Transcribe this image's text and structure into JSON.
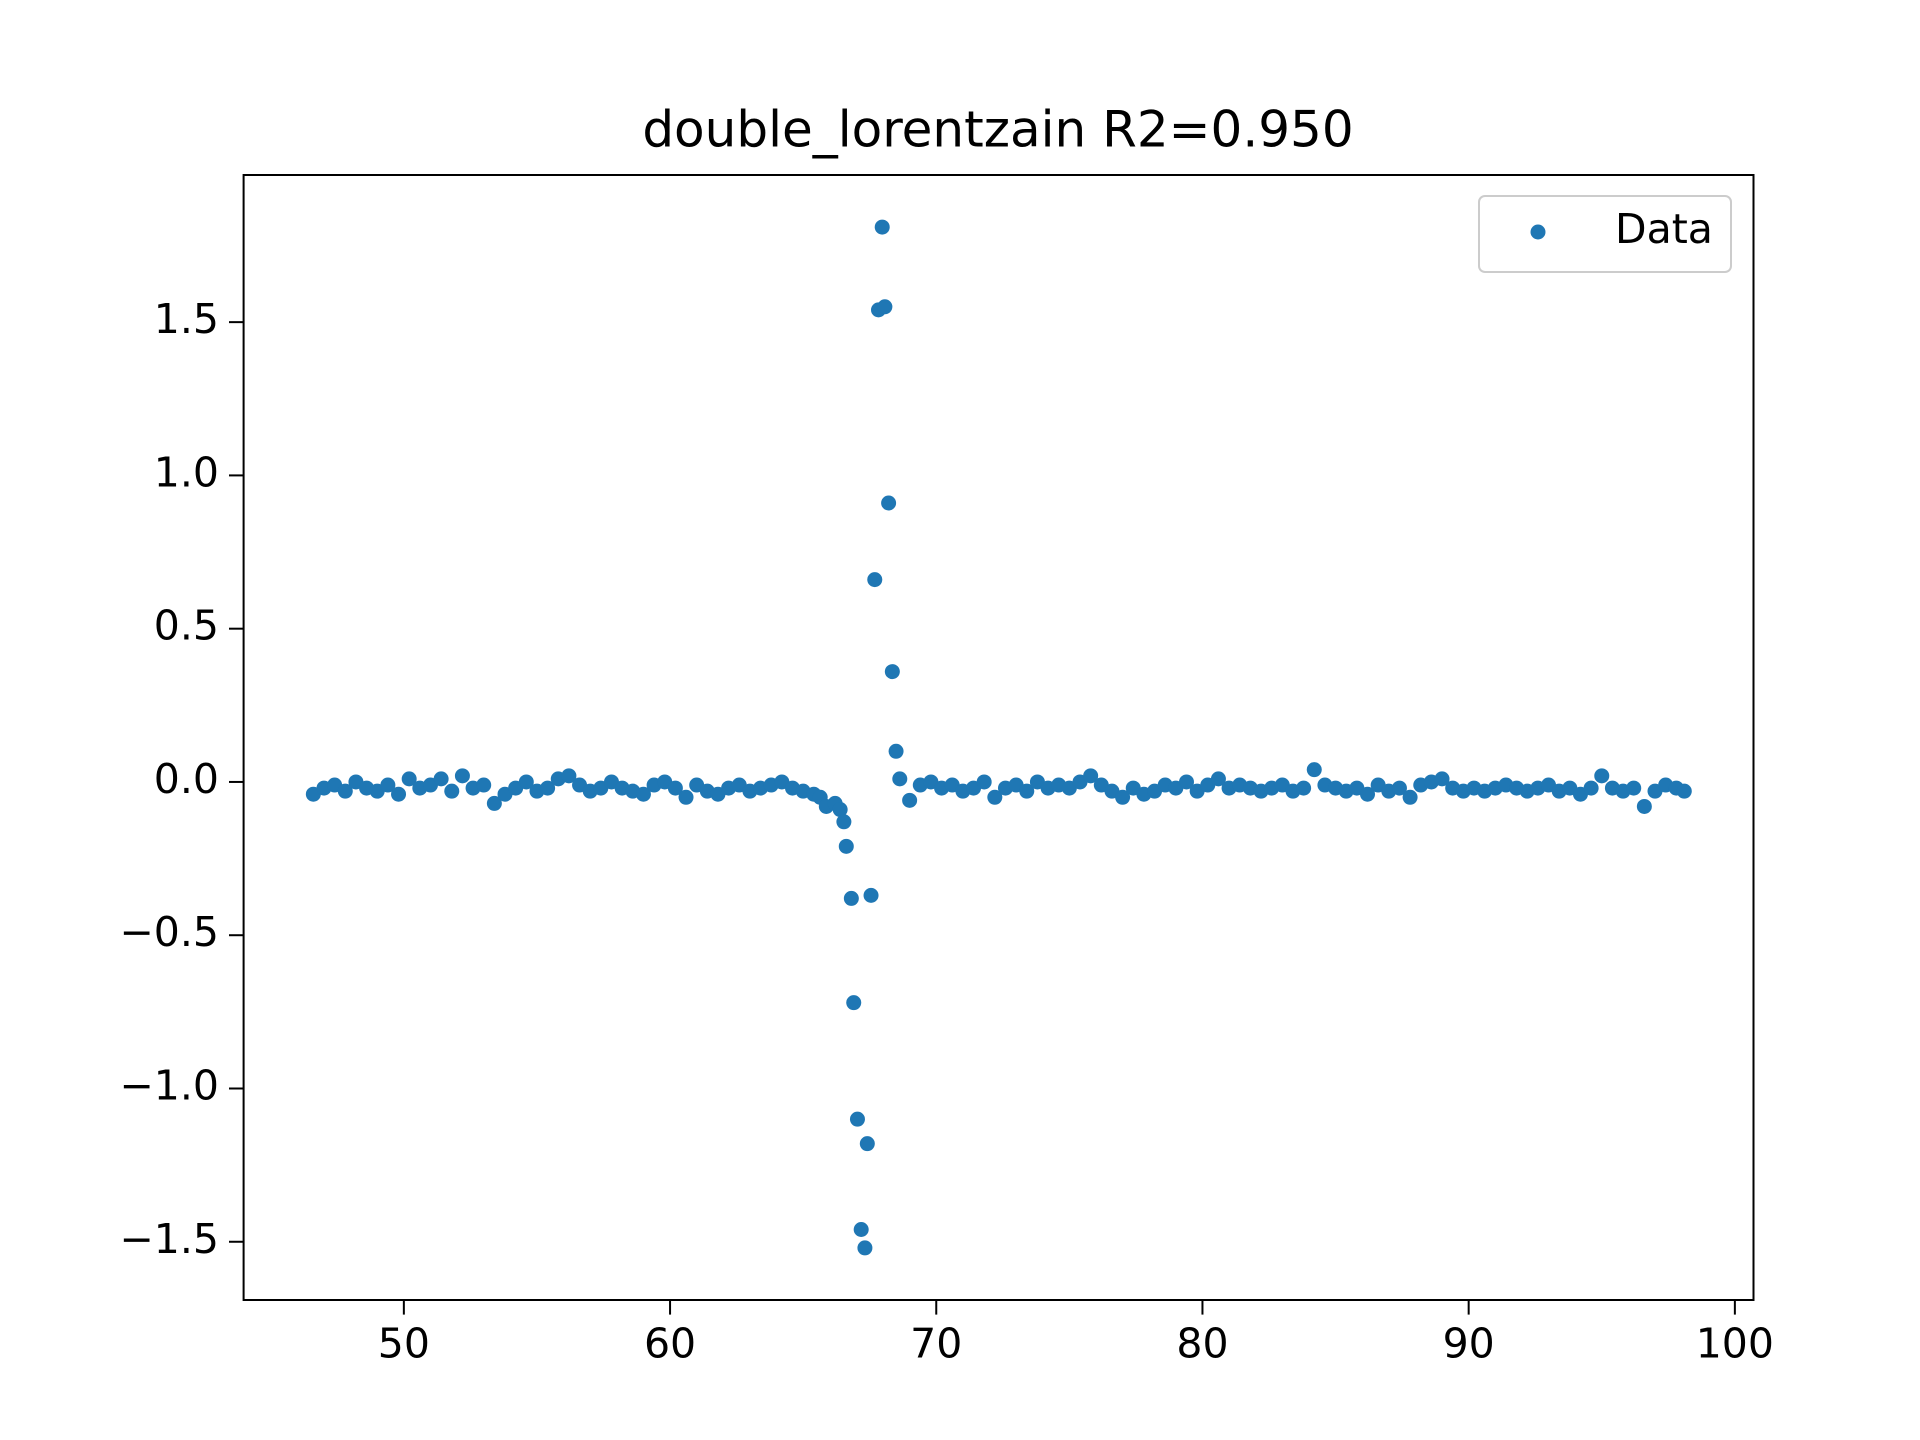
{
  "chart_data": {
    "type": "scatter",
    "title": "double_lorentzain R2=0.950",
    "xlim": [
      43.98,
      100.7
    ],
    "ylim": [
      -1.69,
      1.98
    ],
    "xticks": [
      50,
      60,
      70,
      80,
      90,
      100
    ],
    "yticks": [
      {
        "value": -1.5,
        "label": "−1.5"
      },
      {
        "value": -1.0,
        "label": "−1.0"
      },
      {
        "value": -0.5,
        "label": "−0.5"
      },
      {
        "value": 0,
        "label": "0.0"
      },
      0.5,
      {
        "value": 1.0,
        "label": "1.0"
      },
      1.5
    ],
    "legend": "upper right",
    "series": [
      {
        "name": "Data",
        "color": "#1f77b4",
        "x": [
          46.6,
          47.0,
          47.4,
          47.8,
          48.2,
          48.6,
          49.0,
          49.4,
          49.8,
          50.2,
          50.6,
          51.0,
          51.4,
          51.8,
          52.2,
          52.6,
          53.0,
          53.4,
          53.8,
          54.2,
          54.6,
          55.0,
          55.4,
          55.8,
          56.2,
          56.6,
          57.0,
          57.4,
          57.8,
          58.2,
          58.6,
          59.0,
          59.4,
          59.8,
          60.2,
          60.6,
          61.0,
          61.4,
          61.8,
          62.2,
          62.6,
          63.0,
          63.4,
          63.8,
          64.2,
          64.6,
          65.0,
          65.4,
          65.64,
          65.87,
          66.2,
          66.39,
          66.53,
          66.62,
          66.81,
          66.9,
          67.04,
          67.18,
          67.32,
          67.41,
          67.55,
          67.69,
          67.83,
          67.97,
          68.07,
          68.21,
          68.35,
          68.49,
          68.63,
          69.0,
          69.4,
          69.8,
          70.2,
          70.6,
          71.0,
          71.4,
          71.8,
          72.2,
          72.6,
          73.0,
          73.4,
          73.8,
          74.2,
          74.6,
          75.0,
          75.4,
          75.8,
          76.2,
          76.6,
          77.0,
          77.4,
          77.8,
          78.2,
          78.6,
          79.0,
          79.4,
          79.8,
          80.2,
          80.6,
          81.0,
          81.4,
          81.8,
          82.2,
          82.6,
          83.0,
          83.4,
          83.8,
          84.2,
          84.6,
          85.0,
          85.4,
          85.8,
          86.2,
          86.6,
          87.0,
          87.4,
          87.8,
          88.2,
          88.6,
          89.0,
          89.4,
          89.8,
          90.2,
          90.6,
          91.0,
          91.4,
          91.8,
          92.2,
          92.6,
          93.0,
          93.4,
          93.8,
          94.2,
          94.6,
          95.0,
          95.4,
          95.8,
          96.2,
          96.6,
          97.0,
          97.4,
          97.8,
          98.1
        ],
        "values": [
          -0.04,
          -0.02,
          -0.01,
          -0.03,
          0.0,
          -0.02,
          -0.03,
          -0.01,
          -0.04,
          0.01,
          -0.02,
          -0.01,
          0.01,
          -0.03,
          0.02,
          -0.02,
          -0.01,
          -0.07,
          -0.04,
          -0.02,
          0.0,
          -0.03,
          -0.02,
          0.01,
          0.02,
          -0.01,
          -0.03,
          -0.02,
          0.0,
          -0.02,
          -0.03,
          -0.04,
          -0.01,
          0.0,
          -0.02,
          -0.05,
          -0.01,
          -0.03,
          -0.04,
          -0.02,
          -0.01,
          -0.03,
          -0.02,
          -0.01,
          0.0,
          -0.02,
          -0.03,
          -0.04,
          -0.05,
          -0.08,
          -0.07,
          -0.09,
          -0.13,
          -0.21,
          -0.38,
          -0.72,
          -1.1,
          -1.46,
          -1.52,
          -1.18,
          -0.37,
          0.66,
          1.54,
          1.81,
          1.55,
          0.91,
          0.36,
          0.1,
          0.01,
          -0.06,
          -0.01,
          0.0,
          -0.02,
          -0.01,
          -0.03,
          -0.02,
          0.0,
          -0.05,
          -0.02,
          -0.01,
          -0.03,
          0.0,
          -0.02,
          -0.01,
          -0.02,
          0.0,
          0.02,
          -0.01,
          -0.03,
          -0.05,
          -0.02,
          -0.04,
          -0.03,
          -0.01,
          -0.02,
          0.0,
          -0.03,
          -0.01,
          0.01,
          -0.02,
          -0.01,
          -0.02,
          -0.03,
          -0.02,
          -0.01,
          -0.03,
          -0.02,
          0.04,
          -0.01,
          -0.02,
          -0.03,
          -0.02,
          -0.04,
          -0.01,
          -0.03,
          -0.02,
          -0.05,
          -0.01,
          0.0,
          0.01,
          -0.02,
          -0.03,
          -0.02,
          -0.03,
          -0.02,
          -0.01,
          -0.02,
          -0.03,
          -0.02,
          -0.01,
          -0.03,
          -0.02,
          -0.04,
          -0.02,
          0.02,
          -0.02,
          -0.03,
          -0.02,
          -0.08,
          -0.03,
          -0.01,
          -0.02,
          -0.03
        ]
      }
    ]
  }
}
